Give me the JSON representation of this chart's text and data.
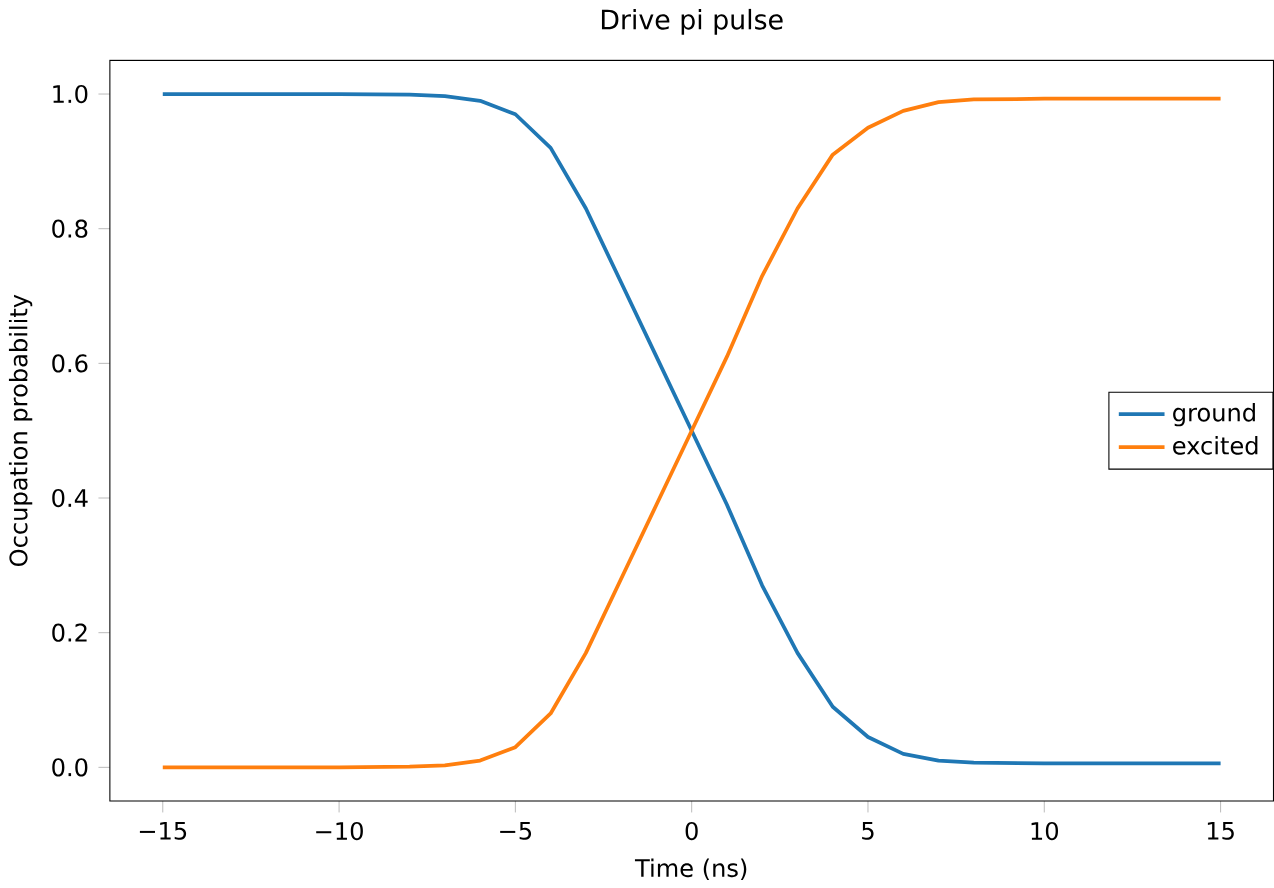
{
  "chart_data": {
    "type": "line",
    "title": "Drive pi pulse",
    "xlabel": "Time (ns)",
    "ylabel": "Occupation probability",
    "x": [
      -15,
      -12,
      -10,
      -8,
      -7,
      -6,
      -5,
      -4,
      -3,
      -2,
      -1,
      0,
      1,
      2,
      3,
      4,
      5,
      6,
      7,
      8,
      10,
      12,
      15
    ],
    "series": [
      {
        "name": "ground",
        "color": "#1f77b4",
        "values": [
          1.0,
          1.0,
          1.0,
          0.999,
          0.997,
          0.99,
          0.97,
          0.92,
          0.83,
          0.72,
          0.61,
          0.5,
          0.39,
          0.27,
          0.17,
          0.09,
          0.045,
          0.02,
          0.01,
          0.007,
          0.006,
          0.006,
          0.006
        ]
      },
      {
        "name": "excited",
        "color": "#ff7f0e",
        "values": [
          0.0,
          0.0,
          0.0,
          0.001,
          0.003,
          0.01,
          0.03,
          0.08,
          0.17,
          0.28,
          0.39,
          0.5,
          0.61,
          0.73,
          0.83,
          0.91,
          0.95,
          0.975,
          0.988,
          0.992,
          0.993,
          0.993,
          0.993
        ]
      }
    ],
    "xlim": [
      -16.5,
      16.5
    ],
    "ylim": [
      -0.05,
      1.05
    ],
    "xticks": [
      {
        "value": -15,
        "label": "−15"
      },
      {
        "value": -10,
        "label": "−10"
      },
      {
        "value": -5,
        "label": "−5"
      },
      0,
      5,
      10,
      15
    ],
    "yticks": [
      {
        "value": 0,
        "label": "0.0"
      },
      {
        "value": 0.2,
        "label": "0.2"
      },
      {
        "value": 0.4,
        "label": "0.4"
      },
      {
        "value": 0.6,
        "label": "0.6"
      },
      {
        "value": 0.8,
        "label": "0.8"
      },
      {
        "value": 1,
        "label": "1.0"
      }
    ],
    "legend": "right",
    "grid": false,
    "marker": "none",
    "line_style": "solid"
  }
}
